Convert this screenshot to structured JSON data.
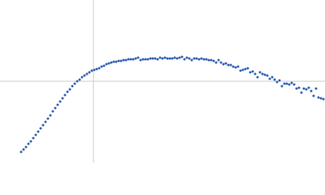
{
  "chart_data": {
    "type": "scatter",
    "color": "#3563b5",
    "xlim": [
      0,
      400
    ],
    "ylim": [
      0,
      200
    ],
    "ref_lines": {
      "x": 115,
      "y": 100,
      "color": "#cccccc"
    },
    "x": [
      26,
      29,
      32,
      35,
      38,
      41,
      44,
      47,
      50,
      53,
      56,
      59,
      62,
      65,
      68,
      71,
      74,
      77,
      80,
      83,
      86,
      89,
      92,
      95,
      98,
      101,
      104,
      107,
      110,
      113,
      116,
      119,
      122,
      125,
      128,
      131,
      134,
      137,
      140,
      143,
      146,
      149,
      152,
      155,
      158,
      161,
      164,
      167,
      170,
      173,
      176,
      179,
      182,
      185,
      188,
      191,
      194,
      197,
      200,
      203,
      206,
      209,
      212,
      215,
      218,
      221,
      224,
      227,
      230,
      233,
      236,
      239,
      242,
      245,
      248,
      251,
      254,
      257,
      260,
      263,
      266,
      269,
      272,
      275,
      278,
      281,
      284,
      287,
      290,
      293,
      296,
      299,
      302,
      305,
      308,
      311,
      314,
      317,
      320,
      323,
      326,
      329,
      332,
      335,
      338,
      341,
      344,
      347,
      350,
      353,
      356,
      359,
      362,
      365,
      368,
      371,
      374,
      377,
      380,
      383,
      386,
      389,
      392,
      395,
      398
    ],
    "y": [
      13,
      16,
      19,
      23,
      26,
      30,
      34,
      38,
      42,
      46,
      50,
      54,
      58,
      63,
      67,
      71,
      75,
      79,
      83,
      87,
      90,
      94,
      97,
      100,
      102,
      105,
      107,
      109,
      111,
      113,
      114,
      115,
      116,
      118,
      119,
      121,
      122,
      123,
      124,
      124,
      125,
      125,
      126,
      126,
      127,
      127,
      127,
      128,
      129,
      126,
      127,
      127,
      127,
      128,
      128,
      128,
      127,
      129,
      128,
      129,
      128,
      128,
      128,
      129,
      128,
      129,
      130,
      127,
      129,
      128,
      126,
      128,
      128,
      127,
      128,
      127,
      127,
      126,
      126,
      125,
      123,
      126,
      123,
      121,
      122,
      120,
      120,
      118,
      117,
      118,
      113,
      114,
      115,
      116,
      111,
      112,
      109,
      105,
      111,
      109,
      108,
      107,
      103,
      105,
      102,
      99,
      101,
      94,
      97,
      97,
      96,
      98,
      96,
      91,
      92,
      86,
      91,
      90,
      92,
      88,
      82,
      91,
      80,
      79,
      78
    ]
  }
}
